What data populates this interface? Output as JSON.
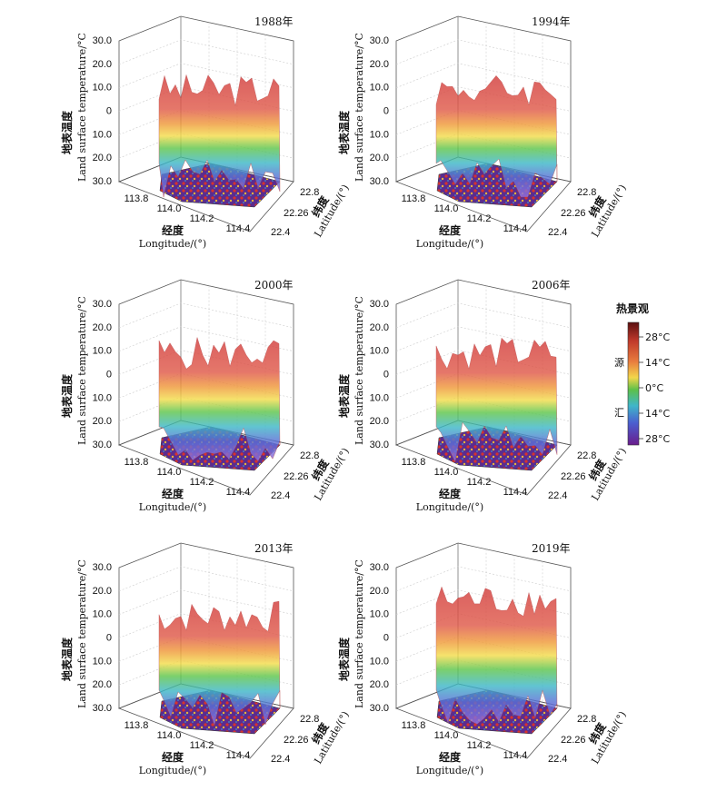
{
  "chart_data": {
    "type": "3d-surface",
    "panels": [
      {
        "year": "1988年"
      },
      {
        "year": "1994年"
      },
      {
        "year": "2000年"
      },
      {
        "year": "2006年"
      },
      {
        "year": "2013年"
      },
      {
        "year": "2019年"
      }
    ],
    "z_axis": {
      "label_cn": "地表温度",
      "label_en": "Land surface temperature/°C",
      "ticks": [
        "30.0",
        "20.0",
        "10.0",
        "0",
        "10.0",
        "20.0",
        "30.0"
      ]
    },
    "x_axis": {
      "label_cn": "经度",
      "label_en": "Longitude/(°)",
      "ticks": [
        "113.8",
        "114.0",
        "114.2",
        "114.4"
      ]
    },
    "y_axis": {
      "label_cn": "纬度",
      "label_en": "Latitude/(°)",
      "ticks": [
        "22.8",
        "22.26",
        "22.4"
      ]
    },
    "legend": {
      "title": "热景观",
      "source_label": "源",
      "sink_label": "汇",
      "ticks": [
        "28°C",
        "14°C",
        "0°C",
        "14°C",
        "28°C"
      ],
      "colors": [
        "#5a0f0f",
        "#c0392b",
        "#e87c3e",
        "#f2d64b",
        "#5cc04a",
        "#3fb6c9",
        "#4a5fd0",
        "#7a3fb5",
        "#6a1c8c"
      ]
    }
  }
}
